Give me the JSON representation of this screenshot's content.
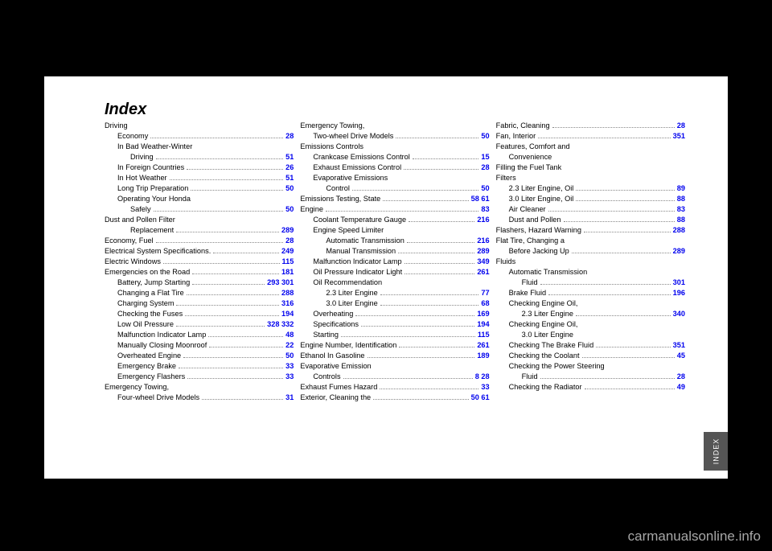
{
  "index_title": "Index",
  "watermark": "carmanualsonline.info",
  "side_tab": "INDEX",
  "columns": [
    {
      "entries": [
        {
          "label": "Driving",
          "pages": "",
          "plain": true
        },
        {
          "label": "Economy",
          "pages": "28",
          "indent": 1
        },
        {
          "label": "In Bad Weather-Winter",
          "pages": "",
          "indent": 1,
          "plain": true
        },
        {
          "label": "Driving",
          "pages": "51",
          "indent": 2
        },
        {
          "label": "In Foreign Countries",
          "pages": "26",
          "indent": 1
        },
        {
          "label": "In Hot Weather",
          "pages": "51",
          "indent": 1
        },
        {
          "label": "Long Trip Preparation",
          "pages": "50",
          "indent": 1
        },
        {
          "label": "Operating Your Honda",
          "pages": "",
          "indent": 1,
          "plain": true
        },
        {
          "label": "Safely",
          "pages": "50",
          "indent": 2
        },
        {
          "label": "Dust and Pollen Filter",
          "pages": "",
          "plain": true
        },
        {
          "label": "Replacement",
          "pages": "289",
          "indent": 2
        },
        {
          "label": "Economy, Fuel",
          "pages": "28"
        },
        {
          "label": "Electrical System Specifications.",
          "pages": "249"
        },
        {
          "label": "Electric Windows",
          "pages": "115"
        },
        {
          "label": "Emergencies on the Road",
          "pages": "181"
        },
        {
          "label": "Battery, Jump Starting",
          "pages": "293  301",
          "indent": 1
        },
        {
          "label": "Changing a Flat Tire",
          "pages": "288",
          "indent": 1
        },
        {
          "label": "Charging System",
          "pages": "316",
          "indent": 1
        },
        {
          "label": "Checking the Fuses",
          "pages": "194",
          "indent": 1
        },
        {
          "label": "Low Oil Pressure",
          "pages": "328  332",
          "indent": 1
        },
        {
          "label": "Malfunction Indicator Lamp",
          "pages": "48",
          "indent": 1
        },
        {
          "label": "Manually Closing Moonroof",
          "pages": "22",
          "indent": 1
        },
        {
          "label": "Overheated Engine",
          "pages": "50",
          "indent": 1
        },
        {
          "label": "Emergency Brake",
          "pages": "33",
          "indent": 1
        },
        {
          "label": "Emergency Flashers",
          "pages": "33",
          "indent": 1
        },
        {
          "label": "Emergency Towing,",
          "pages": "",
          "plain": true
        },
        {
          "label": "Four-wheel Drive Models",
          "pages": "31",
          "indent": 1
        }
      ]
    },
    {
      "entries": [
        {
          "label": "Emergency Towing,",
          "pages": "",
          "plain": true
        },
        {
          "label": "Two-wheel Drive Models",
          "pages": "50",
          "indent": 1
        },
        {
          "label": "Emissions Controls",
          "pages": "",
          "plain": true
        },
        {
          "label": "Crankcase Emissions Control",
          "pages": "15",
          "indent": 1
        },
        {
          "label": "Exhaust Emissions Control",
          "pages": "28",
          "indent": 1
        },
        {
          "label": "Evaporative Emissions",
          "pages": "",
          "indent": 1,
          "plain": true
        },
        {
          "label": "Control",
          "pages": "50",
          "indent": 2
        },
        {
          "label": "Emissions Testing, State",
          "pages": "58  61"
        },
        {
          "label": "Engine",
          "pages": "83",
          "plain": false
        },
        {
          "label": "Coolant Temperature Gauge",
          "pages": "216",
          "indent": 1
        },
        {
          "label": "Engine Speed Limiter",
          "pages": "",
          "indent": 1,
          "plain": true
        },
        {
          "label": "Automatic Transmission",
          "pages": "216",
          "indent": 2
        },
        {
          "label": "Manual Transmission",
          "pages": "289",
          "indent": 2
        },
        {
          "label": "Malfunction Indicator Lamp",
          "pages": "349",
          "indent": 1
        },
        {
          "label": "Oil Pressure Indicator Light",
          "pages": "261",
          "indent": 1
        },
        {
          "label": "Oil Recommendation",
          "pages": "",
          "indent": 1,
          "plain": true
        },
        {
          "label": "2.3 Liter Engine",
          "pages": "77",
          "indent": 2
        },
        {
          "label": "3.0 Liter Engine",
          "pages": "68",
          "indent": 2
        },
        {
          "label": "Overheating",
          "pages": "169",
          "indent": 1
        },
        {
          "label": "Specifications",
          "pages": "194",
          "indent": 1
        },
        {
          "label": "Starting",
          "pages": "115",
          "indent": 1
        },
        {
          "label": "Engine Number, Identification",
          "pages": "261"
        },
        {
          "label": "Ethanol In Gasoline",
          "pages": "189"
        },
        {
          "label": "Evaporative Emission",
          "pages": "",
          "plain": true
        },
        {
          "label": "Controls",
          "pages": "8  28",
          "indent": 1
        },
        {
          "label": "Exhaust Fumes Hazard",
          "pages": "33"
        },
        {
          "label": "Exterior, Cleaning the",
          "pages": "50  61"
        }
      ]
    },
    {
      "entries": [
        {
          "label": "Fabric, Cleaning",
          "pages": "28"
        },
        {
          "label": "Fan, Interior",
          "pages": "351"
        },
        {
          "label": "Features, Comfort and",
          "pages": "",
          "plain": true
        },
        {
          "label": "Convenience",
          "pages": "",
          "indent": 1,
          "plain": true
        },
        {
          "label": "Filling the Fuel Tank",
          "pages": "",
          "plain": true
        },
        {
          "label": "Filters",
          "pages": "",
          "plain": true
        },
        {
          "label": "2.3 Liter Engine, Oil",
          "pages": "89",
          "indent": 1
        },
        {
          "label": "3.0 Liter Engine, Oil",
          "pages": "88",
          "indent": 1
        },
        {
          "label": "Air Cleaner",
          "pages": "83",
          "indent": 1
        },
        {
          "label": "Dust and Pollen",
          "pages": "88",
          "indent": 1
        },
        {
          "label": "Flashers, Hazard Warning",
          "pages": "288"
        },
        {
          "label": "Flat Tire, Changing a",
          "pages": "",
          "plain": true
        },
        {
          "label": "Before Jacking Up",
          "pages": "289",
          "indent": 1
        },
        {
          "label": "Fluids",
          "pages": "",
          "plain": true
        },
        {
          "label": "Automatic Transmission",
          "pages": "",
          "indent": 1,
          "plain": true
        },
        {
          "label": "Fluid",
          "pages": "301",
          "indent": 2
        },
        {
          "label": "Brake Fluid",
          "pages": "196",
          "indent": 1
        },
        {
          "label": "Checking Engine Oil,",
          "pages": "",
          "indent": 1,
          "plain": true
        },
        {
          "label": "2.3 Liter Engine",
          "pages": "340",
          "indent": 2
        },
        {
          "label": "Checking Engine Oil,",
          "pages": "",
          "indent": 1,
          "plain": true
        },
        {
          "label": "3.0 Liter Engine",
          "pages": "",
          "indent": 2,
          "plain": true
        },
        {
          "label": "Checking The Brake Fluid",
          "pages": "351",
          "indent": 1
        },
        {
          "label": "Checking the Coolant",
          "pages": "45",
          "indent": 1
        },
        {
          "label": "Checking the Power Steering",
          "pages": "",
          "indent": 1,
          "plain": true
        },
        {
          "label": "Fluid",
          "pages": "28",
          "indent": 2
        },
        {
          "label": "Checking the Radiator",
          "pages": "49",
          "indent": 1
        }
      ]
    }
  ]
}
